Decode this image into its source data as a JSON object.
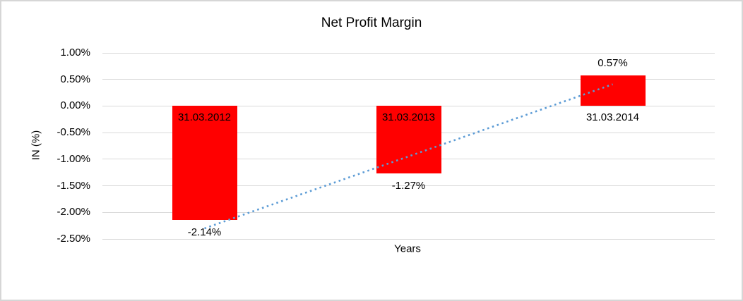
{
  "chart_data": {
    "type": "bar",
    "title": "Net Profit Margin",
    "xlabel": "Years",
    "ylabel": "IN (%)",
    "categories": [
      "31.03.2012",
      "31.03.2013",
      "31.03.2014"
    ],
    "values": [
      -2.14,
      -1.27,
      0.57
    ],
    "value_labels": [
      "-2.14%",
      "-1.27%",
      "0.57%"
    ],
    "ylim": [
      -2.5,
      1.0
    ],
    "ytick_step": 0.5,
    "yticks": [
      "1.00%",
      "0.50%",
      "0.00%",
      "-0.50%",
      "-1.00%",
      "-1.50%",
      "-2.00%",
      "-2.50%"
    ],
    "grid": true,
    "legend": "none",
    "trendline": {
      "type": "linear",
      "style": "dotted"
    },
    "colors": {
      "bar": "#ff0000",
      "trendline": "#5b9bd5",
      "gridline": "#d9d9d9",
      "text": "#000000",
      "frame_border": "#d6d6d6",
      "background": "#ffffff"
    }
  }
}
